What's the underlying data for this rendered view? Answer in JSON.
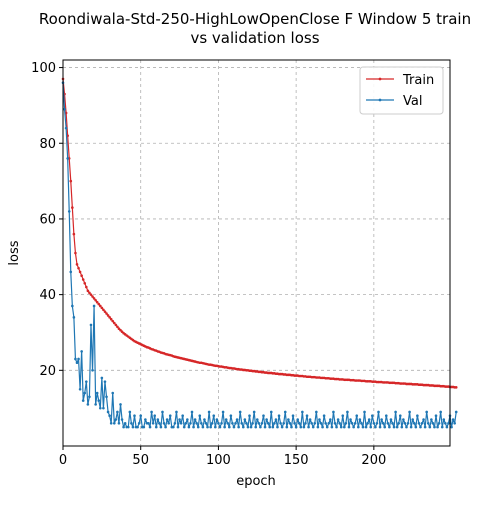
{
  "chart_data": {
    "type": "line",
    "title_line1": "Roondiwala-Std-250-HighLowOpenClose F Window 5 train",
    "title_line2": "vs validation loss",
    "xlabel": "epoch",
    "ylabel": "loss",
    "xlim": [
      0,
      249
    ],
    "ylim": [
      0,
      102
    ],
    "x_ticks": [
      0,
      50,
      100,
      150,
      200
    ],
    "y_ticks": [
      20,
      40,
      60,
      80,
      100
    ],
    "grid": true,
    "legend_position": "top-right",
    "series": [
      {
        "name": "Train",
        "color": "#d62728",
        "values": [
          97,
          93,
          88,
          82,
          76,
          70,
          63,
          56,
          51,
          48,
          47,
          46,
          45,
          44,
          43,
          42,
          41,
          40.5,
          40,
          39.5,
          39,
          38.5,
          38,
          37.5,
          37,
          36.5,
          36,
          35.5,
          35,
          34.5,
          34,
          33.5,
          33,
          32.5,
          32,
          31.5,
          31,
          30.6,
          30.2,
          29.8,
          29.5,
          29.2,
          28.9,
          28.6,
          28.3,
          28,
          27.7,
          27.5,
          27.3,
          27.1,
          26.9,
          26.7,
          26.5,
          26.3,
          26.1,
          26,
          25.8,
          25.6,
          25.5,
          25.3,
          25.2,
          25,
          24.9,
          24.7,
          24.6,
          24.5,
          24.3,
          24.2,
          24.1,
          24,
          23.9,
          23.7,
          23.6,
          23.5,
          23.4,
          23.3,
          23.2,
          23.1,
          23,
          22.9,
          22.8,
          22.7,
          22.6,
          22.5,
          22.4,
          22.3,
          22.2,
          22.1,
          22,
          22,
          21.9,
          21.8,
          21.7,
          21.6,
          21.5,
          21.5,
          21.4,
          21.3,
          21.2,
          21.2,
          21.1,
          21,
          21,
          20.9,
          20.8,
          20.8,
          20.7,
          20.6,
          20.6,
          20.5,
          20.5,
          20.4,
          20.3,
          20.3,
          20.2,
          20.2,
          20.1,
          20.1,
          20,
          20,
          19.9,
          19.9,
          19.8,
          19.8,
          19.7,
          19.7,
          19.6,
          19.6,
          19.5,
          19.5,
          19.4,
          19.4,
          19.3,
          19.3,
          19.3,
          19.2,
          19.2,
          19.1,
          19.1,
          19,
          19,
          19,
          18.9,
          18.9,
          18.8,
          18.8,
          18.8,
          18.7,
          18.7,
          18.6,
          18.6,
          18.6,
          18.5,
          18.5,
          18.5,
          18.4,
          18.4,
          18.3,
          18.3,
          18.3,
          18.2,
          18.2,
          18.2,
          18.1,
          18.1,
          18.1,
          18,
          18,
          18,
          17.9,
          17.9,
          17.9,
          17.8,
          17.8,
          17.8,
          17.7,
          17.7,
          17.7,
          17.6,
          17.6,
          17.6,
          17.5,
          17.5,
          17.5,
          17.5,
          17.4,
          17.4,
          17.4,
          17.3,
          17.3,
          17.3,
          17.3,
          17.2,
          17.2,
          17.2,
          17.1,
          17.1,
          17.1,
          17.1,
          17,
          17,
          17,
          16.9,
          16.9,
          16.9,
          16.9,
          16.8,
          16.8,
          16.8,
          16.8,
          16.7,
          16.7,
          16.7,
          16.7,
          16.6,
          16.6,
          16.6,
          16.5,
          16.5,
          16.5,
          16.5,
          16.4,
          16.4,
          16.4,
          16.4,
          16.3,
          16.3,
          16.3,
          16.3,
          16.2,
          16.2,
          16.2,
          16.1,
          16.1,
          16.1,
          16.1,
          16,
          16,
          16,
          15.9,
          15.9,
          15.9,
          15.9,
          15.8,
          15.8,
          15.8,
          15.7,
          15.7,
          15.7,
          15.6,
          15.6,
          15.6,
          15.5,
          15.5
        ]
      },
      {
        "name": "Val",
        "color": "#1f77b4",
        "values": [
          96,
          89,
          84,
          76,
          62,
          46,
          37,
          34,
          23,
          22,
          23,
          15,
          25,
          12,
          14,
          17,
          11,
          13,
          32,
          20,
          37,
          11,
          14,
          12,
          10,
          18,
          10,
          17,
          13,
          9,
          8,
          6,
          14,
          6,
          7,
          9,
          6,
          11,
          7,
          5,
          6,
          5,
          5,
          9,
          6,
          5,
          8,
          5,
          5,
          6,
          8,
          5,
          5,
          7,
          6,
          6,
          5,
          9,
          6,
          8,
          5,
          7,
          6,
          5,
          9,
          6,
          5,
          7,
          6,
          8,
          5,
          5,
          6,
          9,
          5,
          7,
          6,
          8,
          5,
          6,
          7,
          5,
          6,
          9,
          5,
          7,
          6,
          5,
          8,
          6,
          5,
          7,
          6,
          5,
          9,
          5,
          6,
          8,
          5,
          7,
          6,
          5,
          6,
          9,
          5,
          7,
          6,
          5,
          8,
          6,
          5,
          6,
          7,
          5,
          9,
          6,
          5,
          7,
          6,
          5,
          8,
          5,
          6,
          9,
          5,
          7,
          6,
          5,
          6,
          8,
          5,
          7,
          6,
          5,
          9,
          5,
          6,
          7,
          5,
          8,
          6,
          5,
          6,
          9,
          5,
          7,
          6,
          5,
          8,
          6,
          5,
          7,
          6,
          5,
          9,
          5,
          6,
          8,
          5,
          7,
          6,
          5,
          6,
          9,
          5,
          7,
          6,
          5,
          8,
          6,
          5,
          6,
          7,
          5,
          9,
          6,
          5,
          7,
          6,
          5,
          8,
          5,
          6,
          9,
          5,
          7,
          6,
          5,
          6,
          8,
          5,
          7,
          6,
          5,
          9,
          5,
          6,
          7,
          5,
          8,
          6,
          5,
          6,
          9,
          5,
          7,
          6,
          5,
          8,
          6,
          5,
          7,
          6,
          5,
          9,
          5,
          6,
          8,
          5,
          7,
          6,
          5,
          6,
          9,
          5,
          7,
          6,
          5,
          8,
          6,
          5,
          6,
          7,
          5,
          9,
          6,
          5,
          7,
          6,
          5,
          8,
          5,
          6,
          9,
          5,
          7,
          6,
          5,
          6,
          8,
          5,
          7,
          6,
          9
        ]
      }
    ]
  }
}
